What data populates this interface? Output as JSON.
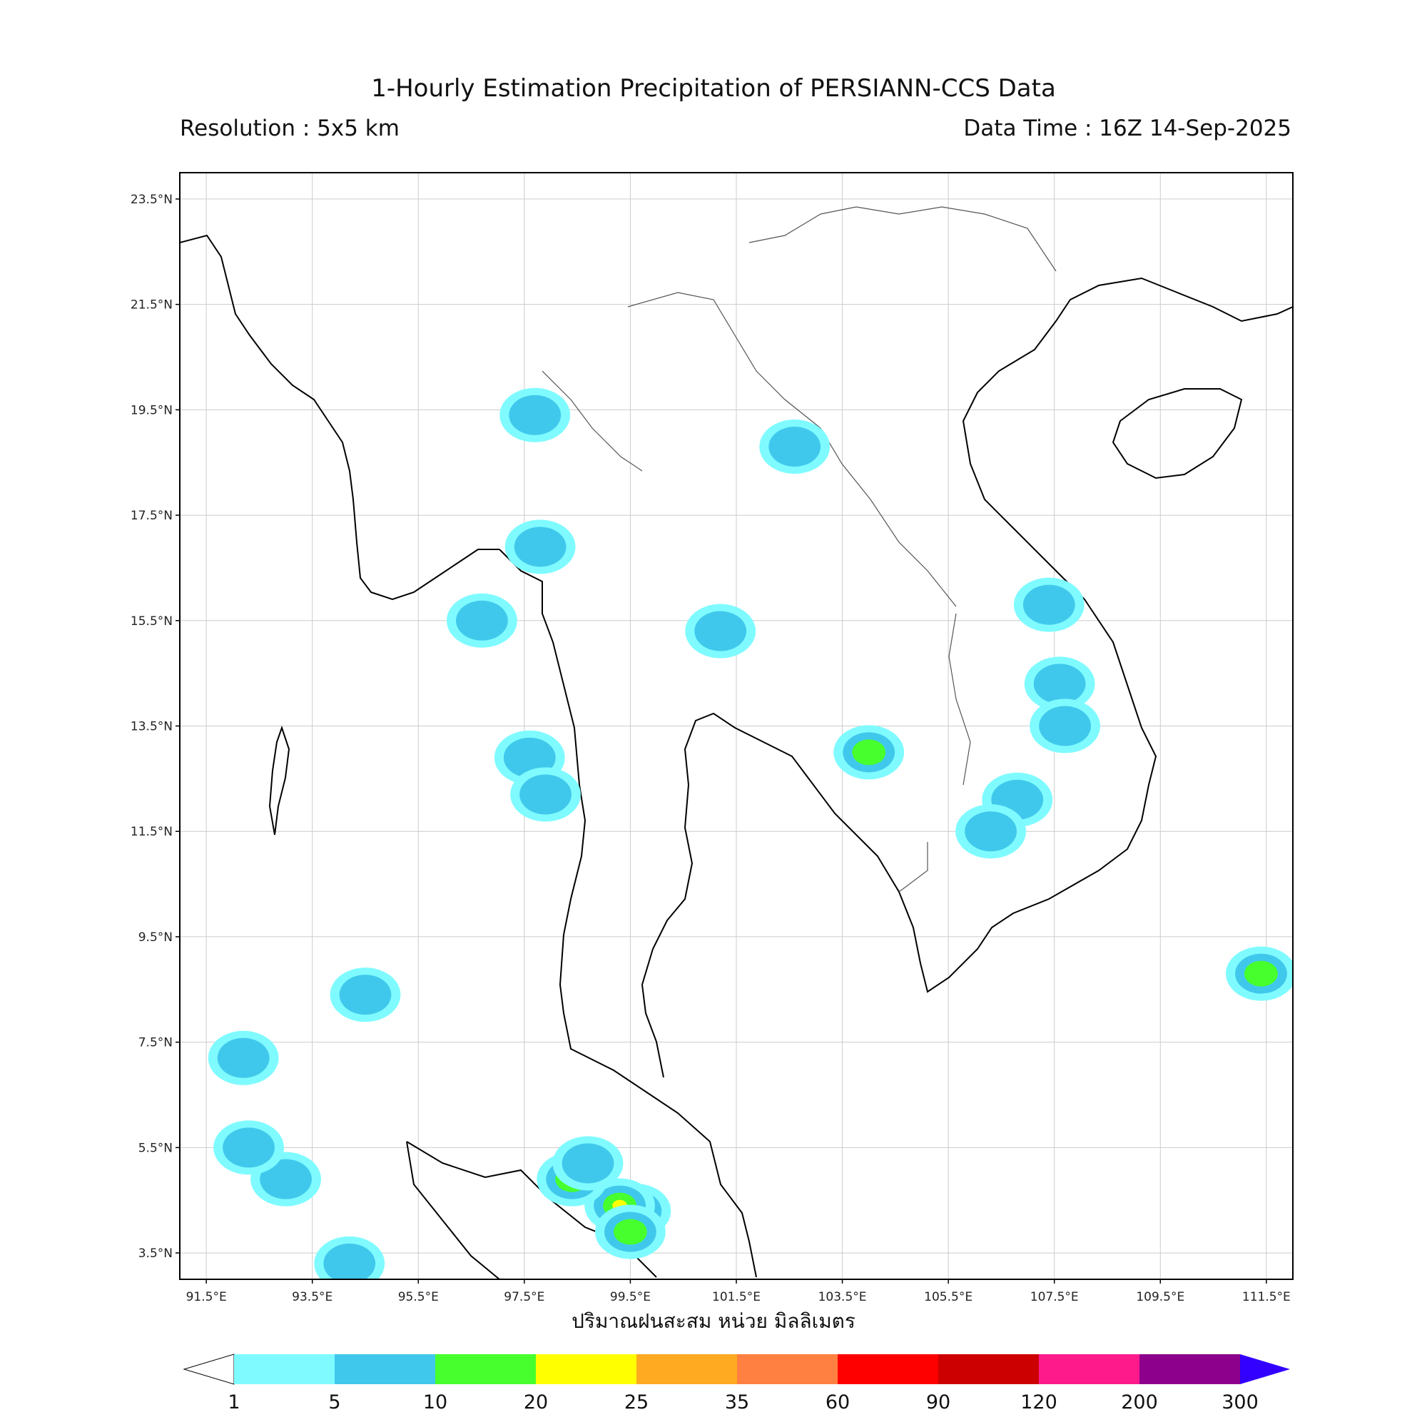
{
  "header": {
    "title": "1-Hourly Estimation Precipitation of PERSIANN-CCS Data",
    "resolution": "Resolution : 5x5 km",
    "data_time": "Data Time : 16Z 14-Sep-2025"
  },
  "map": {
    "lon_range": [
      91,
      112
    ],
    "lat_range": [
      3,
      24
    ],
    "lon_ticks": [
      "91.5°E",
      "93.5°E",
      "95.5°E",
      "97.5°E",
      "99.5°E",
      "101.5°E",
      "103.5°E",
      "105.5°E",
      "107.5°E",
      "109.5°E",
      "111.5°E"
    ],
    "lat_ticks": [
      "23.5°N",
      "21.5°N",
      "19.5°N",
      "17.5°N",
      "15.5°N",
      "13.5°N",
      "11.5°N",
      "9.5°N",
      "7.5°N",
      "5.5°N",
      "3.5°N"
    ],
    "grid": true
  },
  "colorbar": {
    "xlabel": "ปริมาณฝนสะสม หน่วย มิลลิเมตร",
    "levels": [
      "1",
      "5",
      "10",
      "20",
      "25",
      "35",
      "60",
      "90",
      "120",
      "200",
      "300"
    ],
    "colors": [
      "#7ffbff",
      "#40c8ec",
      "#46ff2d",
      "#ffff00",
      "#ffaa20",
      "#ff8040",
      "#ff0000",
      "#cc0000",
      "#ff1a8c",
      "#8c008c"
    ],
    "under_color": "#ffffff",
    "over_color": "#3300ff"
  },
  "rain_cells": [
    {
      "lon": 99.6,
      "lat": 4.3,
      "level": 3
    },
    {
      "lon": 99.3,
      "lat": 4.4,
      "level": 3
    },
    {
      "lon": 98.4,
      "lat": 4.9,
      "level": 3
    },
    {
      "lon": 99.5,
      "lat": 3.9,
      "level": 2
    },
    {
      "lon": 104.0,
      "lat": 13.0,
      "level": 2
    },
    {
      "lon": 111.4,
      "lat": 8.8,
      "level": 2
    },
    {
      "lon": 102.6,
      "lat": 18.8,
      "level": 1
    },
    {
      "lon": 101.2,
      "lat": 15.3,
      "level": 1
    },
    {
      "lon": 107.6,
      "lat": 14.3,
      "level": 1
    },
    {
      "lon": 107.7,
      "lat": 13.5,
      "level": 1
    },
    {
      "lon": 107.4,
      "lat": 15.8,
      "level": 1
    },
    {
      "lon": 106.8,
      "lat": 12.1,
      "level": 1
    },
    {
      "lon": 106.3,
      "lat": 11.5,
      "level": 1
    },
    {
      "lon": 97.6,
      "lat": 12.9,
      "level": 1
    },
    {
      "lon": 97.9,
      "lat": 12.2,
      "level": 1
    },
    {
      "lon": 97.7,
      "lat": 19.4,
      "level": 1
    },
    {
      "lon": 96.7,
      "lat": 15.5,
      "level": 1
    },
    {
      "lon": 94.5,
      "lat": 8.4,
      "level": 1
    },
    {
      "lon": 92.2,
      "lat": 7.2,
      "level": 1
    },
    {
      "lon": 93.0,
      "lat": 4.9,
      "level": 1
    },
    {
      "lon": 94.2,
      "lat": 3.3,
      "level": 1
    },
    {
      "lon": 97.8,
      "lat": 16.9,
      "level": 1
    },
    {
      "lon": 98.7,
      "lat": 5.2,
      "level": 1
    },
    {
      "lon": 92.3,
      "lat": 5.5,
      "level": 1
    }
  ]
}
